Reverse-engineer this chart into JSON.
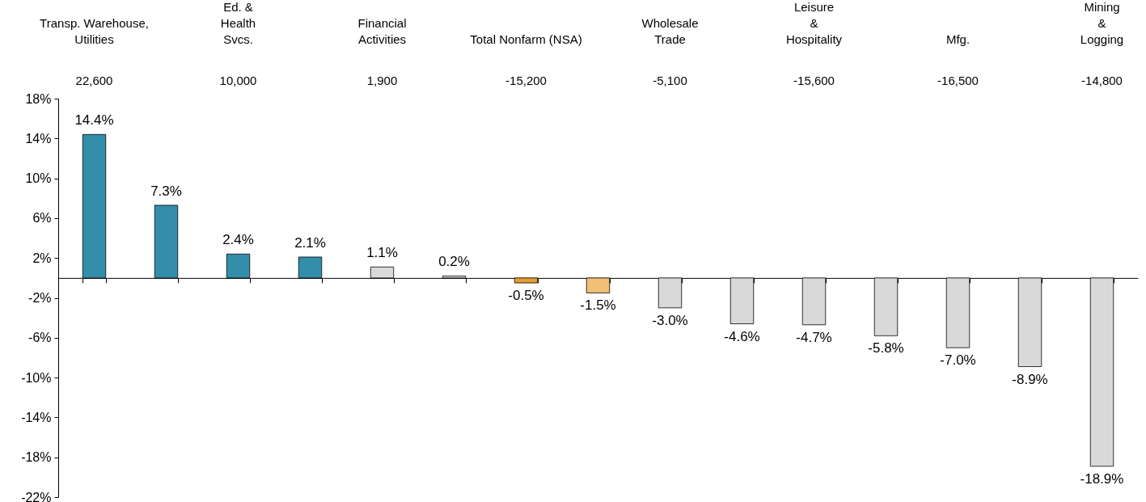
{
  "chart_data": {
    "type": "bar",
    "categories": [
      "Transp. Warehouse,\nUtilities",
      null,
      "Ed. &\nHealth\nSvcs.",
      null,
      "Financial\nActivities",
      null,
      "Total Nonfarm (NSA)",
      null,
      "Wholesale\nTrade",
      null,
      "Leisure\n&\nHospitality",
      null,
      "Mfg.",
      null,
      "Mining\n&\nLogging"
    ],
    "values": [
      14.4,
      7.3,
      2.4,
      2.1,
      1.1,
      0.2,
      -0.5,
      -1.5,
      -3.0,
      -4.6,
      -4.7,
      -5.8,
      -7.0,
      -8.9,
      -18.9
    ],
    "value_labels": [
      "14.4%",
      "7.3%",
      "2.4%",
      "2.1%",
      "1.1%",
      "0.2%",
      "-0.5%",
      "-1.5%",
      "-3.0%",
      "-4.6%",
      "-4.7%",
      "-5.8%",
      "-7.0%",
      "-8.9%",
      "-18.9%"
    ],
    "colors": [
      "#338ea9",
      "#338ea9",
      "#338ea9",
      "#338ea9",
      "#d9d9d9",
      "#d9d9d9",
      "#e59d2f",
      "#f2c074",
      "#d9d9d9",
      "#d9d9d9",
      "#d9d9d9",
      "#d9d9d9",
      "#d9d9d9",
      "#d9d9d9",
      "#d9d9d9"
    ],
    "ylim": [
      -22,
      18
    ],
    "yticks": [
      {
        "value": 18,
        "label": "18%"
      },
      {
        "value": 14,
        "label": "14%"
      },
      {
        "value": 10,
        "label": "10%"
      },
      {
        "value": 6,
        "label": "6%"
      },
      {
        "value": 2,
        "label": "2%"
      },
      {
        "value": -2,
        "label": "-2%"
      },
      {
        "value": -6,
        "label": "-6%"
      },
      {
        "value": -10,
        "label": "-10%"
      },
      {
        "value": -14,
        "label": "-14%"
      },
      {
        "value": -18,
        "label": "-18%"
      },
      {
        "value": -22,
        "label": "-22%"
      }
    ],
    "annotations": [
      "22,600",
      "10,000",
      "1,900",
      "-15,200",
      "-5,100",
      "-15,600",
      "-16,500",
      "-14,800"
    ]
  }
}
